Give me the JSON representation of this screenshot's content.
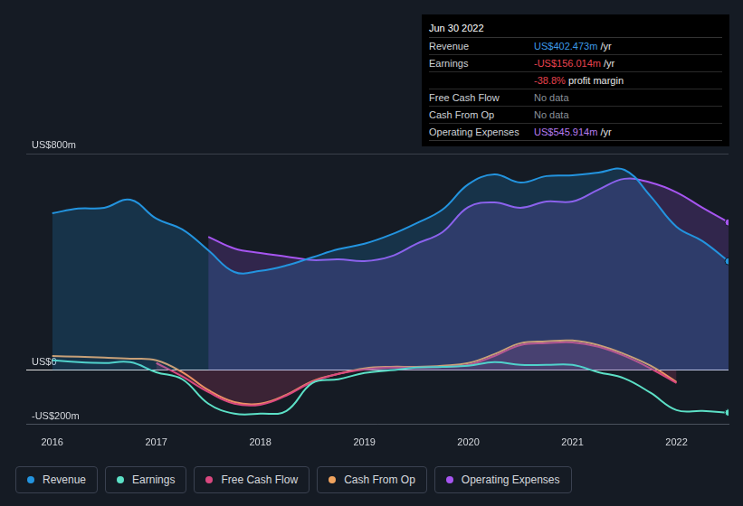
{
  "chart_data": {
    "type": "line",
    "x": [
      2016,
      2016.25,
      2016.5,
      2016.75,
      2017,
      2017.25,
      2017.5,
      2017.75,
      2018,
      2018.25,
      2018.5,
      2018.75,
      2019,
      2019.25,
      2019.5,
      2019.75,
      2020,
      2020.25,
      2020.5,
      2020.75,
      2021,
      2021.25,
      2021.5,
      2021.75,
      2022,
      2022.25,
      2022.5
    ],
    "series": [
      {
        "name": "Revenue",
        "color": "#2394df",
        "type": "area",
        "values": [
          580,
          597,
          600,
          630,
          560,
          520,
          443,
          363,
          367,
          387,
          417,
          447,
          467,
          500,
          543,
          593,
          687,
          723,
          693,
          717,
          720,
          730,
          740,
          643,
          530,
          477,
          402.473
        ]
      },
      {
        "name": "Earnings",
        "color": "#5ce0c6",
        "type": "line",
        "values": [
          37,
          30,
          27,
          30,
          -7,
          -33,
          -123,
          -160,
          -160,
          -150,
          -47,
          -33,
          -10,
          0,
          10,
          13,
          17,
          30,
          20,
          20,
          20,
          -7,
          -30,
          -83,
          -147,
          -150,
          -156.014
        ]
      },
      {
        "name": "Free Cash Flow",
        "color": "#d9487f",
        "type": "area",
        "values": [
          null,
          null,
          null,
          null,
          27,
          -23,
          -80,
          -123,
          -127,
          -93,
          -43,
          -13,
          3,
          10,
          10,
          13,
          20,
          53,
          93,
          100,
          103,
          87,
          53,
          7,
          -47,
          null,
          null
        ]
      },
      {
        "name": "Cash From Op",
        "color": "#f0a35e",
        "type": "line",
        "values": [
          53,
          50,
          47,
          43,
          37,
          -7,
          -73,
          -117,
          -123,
          -90,
          -40,
          -13,
          7,
          13,
          13,
          17,
          27,
          60,
          100,
          107,
          110,
          93,
          60,
          17,
          -43,
          null,
          null
        ]
      },
      {
        "name": "Operating Expenses",
        "color": "#a655f0",
        "type": "area",
        "values": [
          null,
          null,
          null,
          null,
          null,
          null,
          493,
          450,
          433,
          420,
          407,
          410,
          403,
          420,
          467,
          510,
          603,
          620,
          600,
          623,
          623,
          667,
          707,
          693,
          657,
          600,
          545.914
        ]
      }
    ],
    "xlim": [
      2015.75,
      2022.5
    ],
    "xticks": [
      2016,
      2017,
      2018,
      2019,
      2020,
      2021,
      2022
    ],
    "ylim": [
      -200,
      800
    ],
    "yticks": [
      {
        "value": -200,
        "label": "-US$200m"
      },
      {
        "value": 0,
        "label": "US$0"
      },
      {
        "value": 800,
        "label": "US$800m"
      }
    ],
    "grid": true,
    "legend": "bottom-left",
    "annotations": {
      "title": "Jun 30 2022",
      "rows": [
        {
          "label": "Revenue",
          "value": "US$402.473m",
          "unit": "/yr",
          "color": "#3d9ae8"
        },
        {
          "label": "Earnings",
          "value": "-US$156.014m",
          "unit": "/yr",
          "color": "#e8434f"
        },
        {
          "value": "-38.8%",
          "unit": "profit margin",
          "color": "#e8434f"
        },
        {
          "label": "Free Cash Flow",
          "value": "No data",
          "color": "#8a9099"
        },
        {
          "label": "Cash From Op",
          "value": "No data",
          "color": "#8a9099"
        },
        {
          "label": "Operating Expenses",
          "value": "US$545.914m",
          "unit": "/yr",
          "color": "#b77cf2"
        }
      ]
    }
  }
}
